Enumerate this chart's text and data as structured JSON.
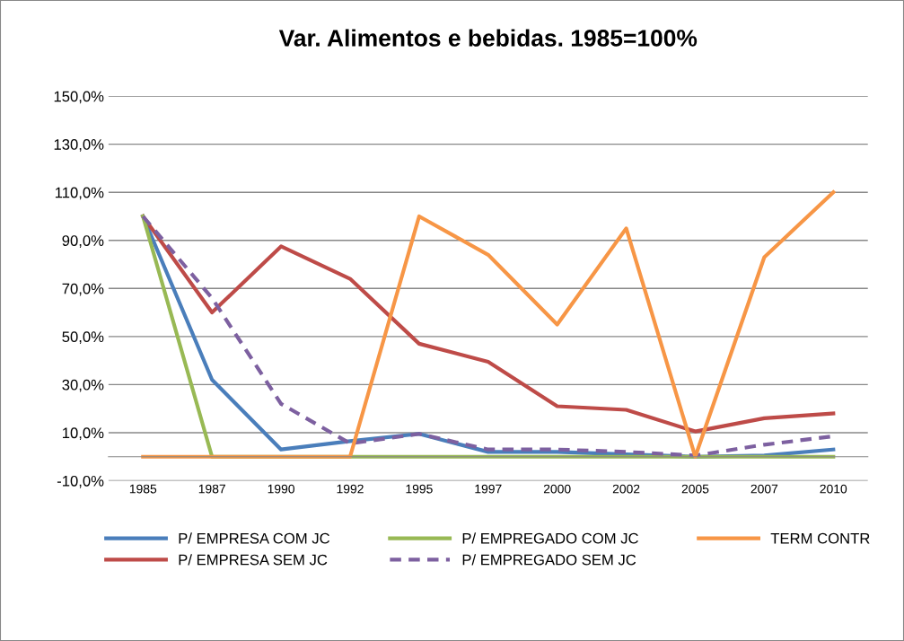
{
  "chart_data": {
    "type": "line",
    "title": "Var. Alimentos e bebidas. 1985=100%",
    "categories": [
      "1985",
      "1987",
      "1990",
      "1992",
      "1995",
      "1997",
      "2000",
      "2002",
      "2005",
      "2007",
      "2010"
    ],
    "series": [
      {
        "name": "P/ EMPRESA COM JC",
        "color": "#4a7ebb",
        "values": [
          100,
          32,
          3,
          6.5,
          9.5,
          2,
          2,
          1,
          0,
          0.5,
          3
        ]
      },
      {
        "name": "P/ EMPRESA SEM JC",
        "color": "#be4b48",
        "values": [
          100,
          60,
          87.5,
          74,
          47,
          39.5,
          21,
          19.5,
          10.5,
          16,
          18
        ]
      },
      {
        "name": "P/ EMPREGADO COM JC",
        "color": "#98b954",
        "values": [
          100,
          0,
          0,
          0,
          0,
          0,
          0,
          0,
          0,
          0,
          0
        ]
      },
      {
        "name": "P/ EMPREGADO SEM JC",
        "color": "#7d60a0",
        "line_style": "dashed",
        "values": [
          100,
          66,
          22,
          5.5,
          9.5,
          3,
          3,
          2,
          0.5,
          5,
          8.5
        ]
      },
      {
        "name": "TERM CONTR",
        "color": "#f79646",
        "values": [
          0,
          0,
          0,
          0,
          100,
          84,
          55,
          95,
          0,
          83,
          110
        ]
      }
    ],
    "ylim": [
      -10,
      150
    ],
    "yticks": [
      {
        "value": -10,
        "label": "-10,0%"
      },
      {
        "value": 10,
        "label": "10,0%"
      },
      {
        "value": 30,
        "label": "30,0%"
      },
      {
        "value": 50,
        "label": "50,0%"
      },
      {
        "value": 70,
        "label": "70,0%"
      },
      {
        "value": 90,
        "label": "90,0%"
      },
      {
        "value": 110,
        "label": "110,0%"
      },
      {
        "value": 130,
        "label": "130,0%"
      },
      {
        "value": 150,
        "label": "150,0%"
      }
    ],
    "grid": "y",
    "legend": "bottom",
    "marker": "none",
    "line_style": "solid"
  }
}
